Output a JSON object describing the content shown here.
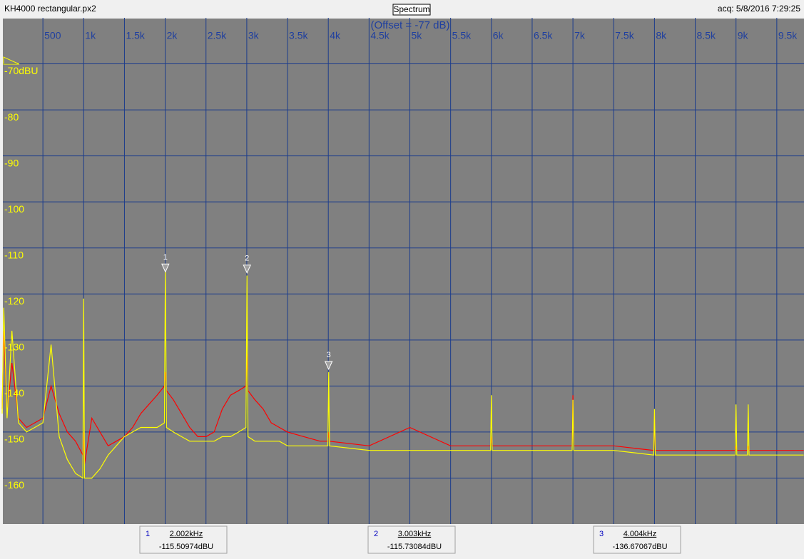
{
  "header": {
    "file": "KH4000 rectangular.px2",
    "view": "Spectrum",
    "acquired": "acq: 5/8/2016 7:29:25"
  },
  "chart_data": {
    "type": "line",
    "annotation": "(Offset = -77 dB)",
    "xlim": [
      0,
      9830
    ],
    "ylim": [
      -170,
      -60
    ],
    "xticks": [
      500,
      {
        "value": 1000,
        "label": "1k"
      },
      {
        "value": 1500,
        "label": "1.5k"
      },
      {
        "value": 2000,
        "label": "2k"
      },
      {
        "value": 2500,
        "label": "2.5k"
      },
      {
        "value": 3000,
        "label": "3k"
      },
      {
        "value": 3500,
        "label": "3.5k"
      },
      {
        "value": 4000,
        "label": "4k"
      },
      {
        "value": 4500,
        "label": "4.5k"
      },
      {
        "value": 5000,
        "label": "5k"
      },
      {
        "value": 5500,
        "label": "5.5k"
      },
      {
        "value": 6000,
        "label": "6k"
      },
      {
        "value": 6500,
        "label": "6.5k"
      },
      {
        "value": 7000,
        "label": "7k"
      },
      {
        "value": 7500,
        "label": "7.5k"
      },
      {
        "value": 8000,
        "label": "8k"
      },
      {
        "value": 8500,
        "label": "8.5k"
      },
      {
        "value": 9000,
        "label": "9k"
      },
      {
        "value": 9500,
        "label": "9.5k"
      }
    ],
    "yticks": [
      {
        "value": -70,
        "label": "-70dBU"
      },
      -80,
      -90,
      -100,
      -110,
      -120,
      -130,
      -140,
      -150,
      -160
    ],
    "grid": true,
    "x": [
      0,
      20,
      60,
      120,
      200,
      300,
      400,
      500,
      600,
      700,
      800,
      900,
      990,
      1000,
      1010,
      1100,
      1200,
      1300,
      1400,
      1500,
      1600,
      1700,
      1800,
      1900,
      1990,
      2002,
      2015,
      2100,
      2200,
      2300,
      2400,
      2500,
      2600,
      2700,
      2800,
      2900,
      2990,
      3003,
      3015,
      3100,
      3200,
      3300,
      3400,
      3500,
      3700,
      3900,
      3995,
      4004,
      4015,
      4500,
      5000,
      5500,
      5990,
      6000,
      6010,
      6500,
      6990,
      7000,
      7010,
      7500,
      7990,
      8000,
      8010,
      8500,
      8990,
      9000,
      9010,
      9140,
      9150,
      9160,
      9500,
      9830
    ],
    "series": [
      {
        "color": "#ff0000",
        "values": [
          -145,
          -128,
          -146,
          -135,
          -147,
          -149,
          -148,
          -147,
          -140,
          -146,
          -150,
          -152,
          -155,
          -150,
          -157,
          -147,
          -150,
          -153,
          -152,
          -151,
          -149,
          -146,
          -144,
          -142,
          -140,
          -137,
          -141,
          -143,
          -146,
          -149,
          -151,
          -151,
          -150,
          -145,
          -142,
          -141,
          -140,
          -133,
          -141,
          -143,
          -145,
          -148,
          -149,
          -150,
          -151,
          -152,
          -152,
          -150,
          -152,
          -153,
          -149,
          -153,
          -153,
          -151,
          -153,
          -153,
          -153,
          -142,
          -153,
          -153,
          -154,
          -146,
          -154,
          -154,
          -154,
          -153,
          -154,
          -154,
          -153,
          -154,
          -154,
          -154
        ]
      },
      {
        "color": "#ffff00",
        "values": [
          -146,
          -123,
          -147,
          -128,
          -148,
          -150,
          -149,
          -148,
          -131,
          -151,
          -156,
          -159,
          -160,
          -121,
          -160,
          -160,
          -158,
          -155,
          -153,
          -151,
          -150,
          -149,
          -149,
          -149,
          -148,
          -114,
          -149,
          -150,
          -151,
          -152,
          -152,
          -152,
          -152,
          -151,
          -151,
          -150,
          -149,
          -116,
          -151,
          -152,
          -152,
          -152,
          -152,
          -153,
          -153,
          -153,
          -153,
          -137,
          -153,
          -154,
          -154,
          -154,
          -154,
          -142,
          -154,
          -154,
          -154,
          -143,
          -154,
          -154,
          -155,
          -145,
          -155,
          -155,
          -155,
          -144,
          -155,
          -155,
          -144,
          -155,
          -155,
          -155
        ]
      }
    ],
    "markers": [
      {
        "id": "1",
        "x": 2002,
        "y": -115.50974,
        "x_label": "2.002kHz",
        "y_label": "-115.50974dBU"
      },
      {
        "id": "2",
        "x": 3003,
        "y": -115.73084,
        "x_label": "3.003kHz",
        "y_label": "-115.73084dBU"
      },
      {
        "id": "3",
        "x": 4004,
        "y": -136.67067,
        "x_label": "4.004kHz",
        "y_label": "-136.67067dBU"
      }
    ]
  }
}
